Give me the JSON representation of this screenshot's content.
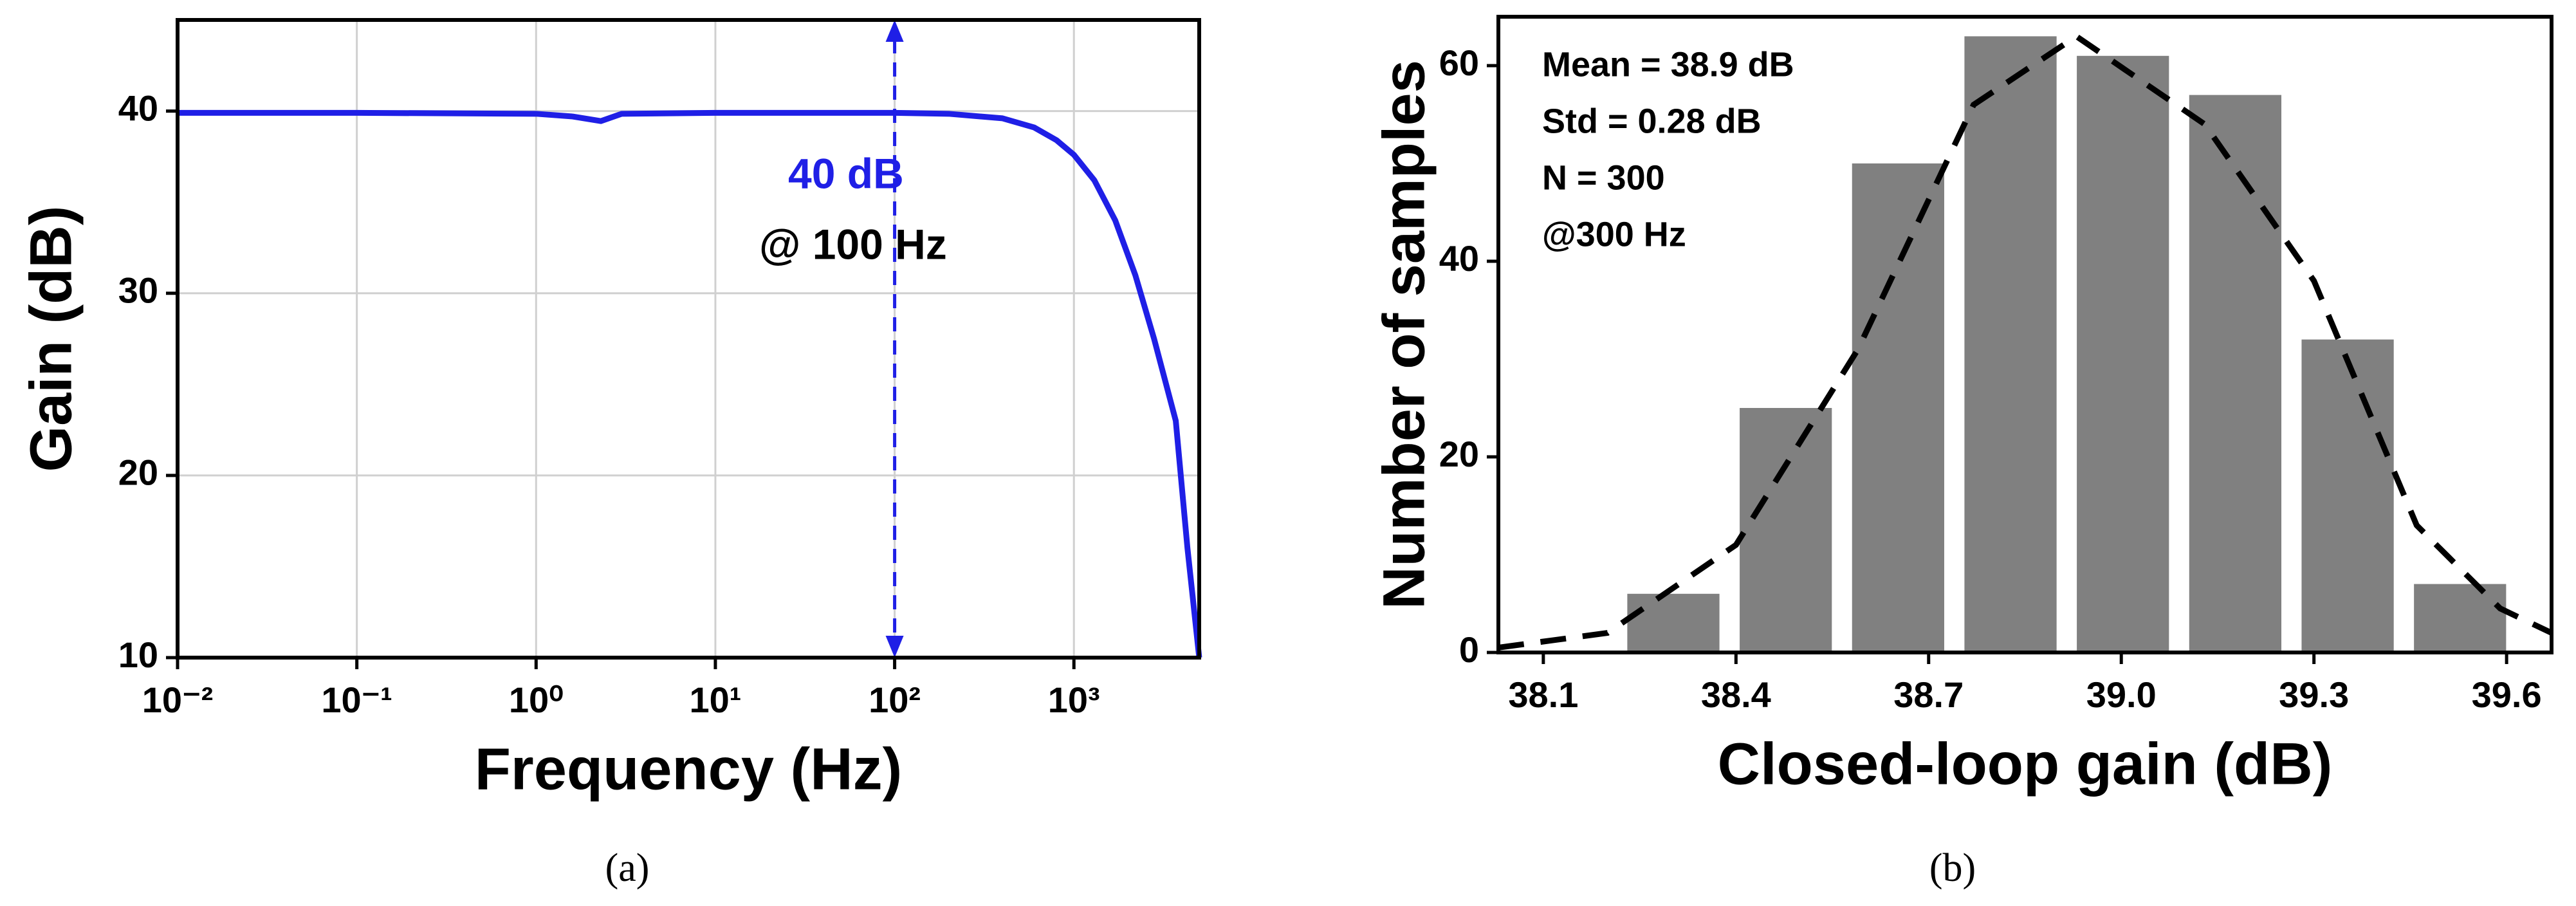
{
  "chart_data": [
    {
      "type": "line",
      "caption": "(a)",
      "xlabel": "Frequency (Hz)",
      "ylabel": "Gain (dB)",
      "xscale": "log",
      "xlim": [
        0.01,
        5000
      ],
      "ylim": [
        10,
        45
      ],
      "xticks": [
        {
          "value": 0.01,
          "label": "10⁻²"
        },
        {
          "value": 0.1,
          "label": "10⁻¹"
        },
        {
          "value": 1,
          "label": "10⁰"
        },
        {
          "value": 10,
          "label": "10¹"
        },
        {
          "value": 100,
          "label": "10²"
        },
        {
          "value": 1000,
          "label": "10³"
        }
      ],
      "yticks": [
        10,
        20,
        30,
        40
      ],
      "grid": true,
      "x": [
        0.01,
        0.1,
        1,
        1.6,
        2.3,
        3,
        10,
        100,
        200,
        400,
        600,
        800,
        1000,
        1300,
        1700,
        2200,
        2800,
        3700,
        4300,
        5000
      ],
      "series": [
        {
          "color": "#1f1fe6",
          "values": [
            39.9,
            39.9,
            39.85,
            39.7,
            39.45,
            39.85,
            39.9,
            39.9,
            39.85,
            39.6,
            39.1,
            38.4,
            37.6,
            36.2,
            34,
            31,
            27.5,
            23,
            16,
            10
          ]
        }
      ],
      "arrow_x": 100,
      "annotations": [
        {
          "text": "40 dB",
          "color": "#1f1fe6"
        },
        {
          "text": "@ 100 Hz",
          "color": "#000000"
        }
      ]
    },
    {
      "type": "histogram",
      "caption": "(b)",
      "xlabel": "Closed-loop gain (dB)",
      "ylabel": "Number of samples",
      "xlim": [
        38.03,
        39.67
      ],
      "ylim": [
        0,
        65
      ],
      "xticks": [
        38.1,
        38.4,
        38.7,
        {
          "value": 39,
          "label": "39.0"
        },
        39.3,
        39.6
      ],
      "yticks": [
        0,
        20,
        40,
        60
      ],
      "bins": [
        38.215,
        38.39,
        38.565,
        38.74,
        38.915,
        39.09,
        39.265,
        39.44,
        39.615
      ],
      "values": [
        6,
        25,
        50,
        63,
        61,
        57,
        32,
        7
      ],
      "color": "#808080",
      "curve": {
        "color": "#000000",
        "x": [
          38.03,
          38.2,
          38.4,
          38.59,
          38.77,
          38.93,
          39.13,
          39.3,
          39.46,
          39.59,
          39.67
        ],
        "values": [
          0.5,
          2,
          11,
          31,
          56,
          63,
          54,
          38,
          13,
          4.5,
          2
        ]
      },
      "annotations": [
        {
          "text": "Mean = 38.9 dB"
        },
        {
          "text": "Std = 0.28 dB"
        },
        {
          "text": "N = 300"
        },
        {
          "text": "@300 Hz"
        }
      ]
    }
  ]
}
